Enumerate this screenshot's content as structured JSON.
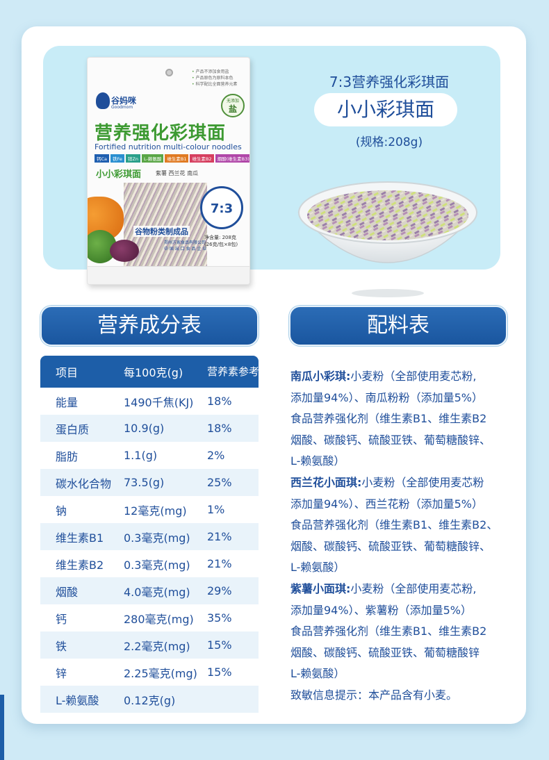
{
  "package": {
    "notes": [
      "产品不添加食用盐",
      "产品原色为原料本色",
      "科学配比全面营养元素"
    ],
    "brand_cn": "谷妈咪",
    "brand_en": "Goodmom",
    "seal_top": "无添加",
    "seal_mid": "盐",
    "title_cn": "营养强化彩琪面",
    "title_en": "Fortified nutrition multi-colour noodles",
    "chips": [
      {
        "label": "钙Ca",
        "color": "#1f5fb0"
      },
      {
        "label": "铁Fe",
        "color": "#2a8fd0"
      },
      {
        "label": "锌Zn",
        "color": "#2aa08a"
      },
      {
        "label": "L-赖氨酸",
        "color": "#5aa646"
      },
      {
        "label": "维生素B1",
        "color": "#e07a22"
      },
      {
        "label": "维生素B2",
        "color": "#d63f5f"
      },
      {
        "label": "烟酸(维生素B3)",
        "color": "#b046a8"
      }
    ],
    "sub_name": "小小彩琪面",
    "flavors": "紫薯 西兰花 南瓜",
    "badge_ratio": "7:3",
    "category": "谷物粉类制成品",
    "net_line1": "净含量: 208克",
    "net_line2": "(26克/包×8包)",
    "maker_line1": "郑州方家食品有限公司",
    "maker_line2": "中 国 出 口 食 品 企 业"
  },
  "hero": {
    "line1": "7:3营养强化彩琪面",
    "name": "小小彩琪面",
    "spec": "(规格:208g)"
  },
  "colors": {
    "accent": "#1d5ea8",
    "text": "#1f4e9a",
    "row_alt": "#e9f3fa",
    "hero_bg": "#c8ecf7"
  },
  "nutrition": {
    "title": "营养成分表",
    "headers": [
      "项目",
      "每100克(g)",
      "营养素参考值%"
    ],
    "rows": [
      [
        "能量",
        "1490千焦(KJ)",
        "18%"
      ],
      [
        "蛋白质",
        "10.9(g)",
        "18%"
      ],
      [
        "脂肪",
        "1.1(g)",
        "2%"
      ],
      [
        "碳水化合物",
        "73.5(g)",
        "25%"
      ],
      [
        "钠",
        "12毫克(mg)",
        "1%"
      ],
      [
        "维生素B1",
        "0.3毫克(mg)",
        "21%"
      ],
      [
        "维生素B2",
        "0.3毫克(mg)",
        "21%"
      ],
      [
        "烟酸",
        "4.0毫克(mg)",
        "29%"
      ],
      [
        "钙",
        "280毫克(mg)",
        "35%"
      ],
      [
        "铁",
        "2.2毫克(mg)",
        "15%"
      ],
      [
        "锌",
        "2.25毫克(mg)",
        "15%"
      ],
      [
        "L-赖氨酸",
        "0.12克(g)",
        ""
      ]
    ]
  },
  "ingredients": {
    "title": "配料表",
    "blocks": [
      {
        "label": "南瓜小彩琪:",
        "lines": [
          "小麦粉（全部使用麦芯粉,",
          "添加量94%）、南瓜粉粉（添加量5%）",
          "食品营养强化剂（维生素B1、维生素B2",
          "烟酸、碳酸钙、硫酸亚铁、葡萄糖酸锌、",
          "L-赖氨酸）"
        ]
      },
      {
        "label": "西兰花小面琪:",
        "lines": [
          "小麦粉（全部使用麦芯粉",
          "添加量94%）、西兰花粉（添加量5%）",
          "食品营养强化剂（维生素B1、维生素B2、",
          "烟酸、碳酸钙、硫酸亚铁、葡萄糖酸锌、",
          "L-赖氨酸）"
        ]
      },
      {
        "label": "紫薯小面琪:",
        "lines": [
          "小麦粉（全部使用麦芯粉,",
          "添加量94%）、紫薯粉（添加量5%）",
          "食品营养强化剂（维生素B1、维生素B2",
          "烟酸、碳酸钙、硫酸亚铁、葡萄糖酸锌",
          "L-赖氨酸）"
        ]
      }
    ],
    "allergy": "致敏信息提示：本产品含有小麦。"
  }
}
